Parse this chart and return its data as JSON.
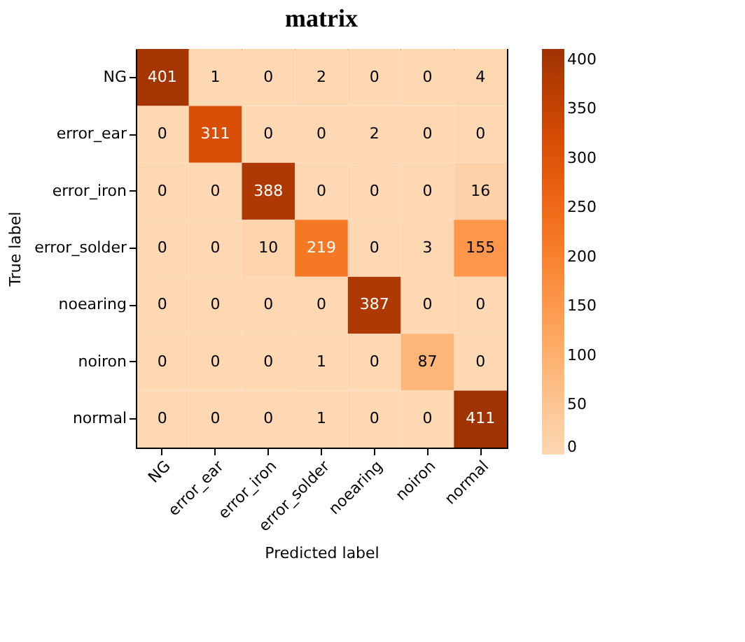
{
  "chart_data": {
    "type": "heatmap",
    "title": "matrix",
    "xlabel": "Predicted label",
    "ylabel": "True label",
    "categories": [
      "NG",
      "error_ear",
      "error_iron",
      "error_solder",
      "noearing",
      "noiron",
      "normal"
    ],
    "y_categories": [
      "NG",
      "error_ear",
      "error_iron",
      "error_solder",
      "noearing",
      "noiron",
      "normal"
    ],
    "cells": [
      [
        401,
        1,
        0,
        2,
        0,
        0,
        4
      ],
      [
        0,
        311,
        0,
        0,
        2,
        0,
        0
      ],
      [
        0,
        0,
        388,
        0,
        0,
        0,
        16
      ],
      [
        0,
        0,
        10,
        219,
        0,
        3,
        155
      ],
      [
        0,
        0,
        0,
        0,
        387,
        0,
        0
      ],
      [
        0,
        0,
        0,
        1,
        0,
        87,
        0
      ],
      [
        0,
        0,
        0,
        1,
        0,
        0,
        411
      ]
    ],
    "clim": [
      0,
      411
    ],
    "cticks": [
      0,
      50,
      100,
      150,
      200,
      250,
      300,
      350,
      400
    ],
    "data_labels": true,
    "grid": false
  }
}
